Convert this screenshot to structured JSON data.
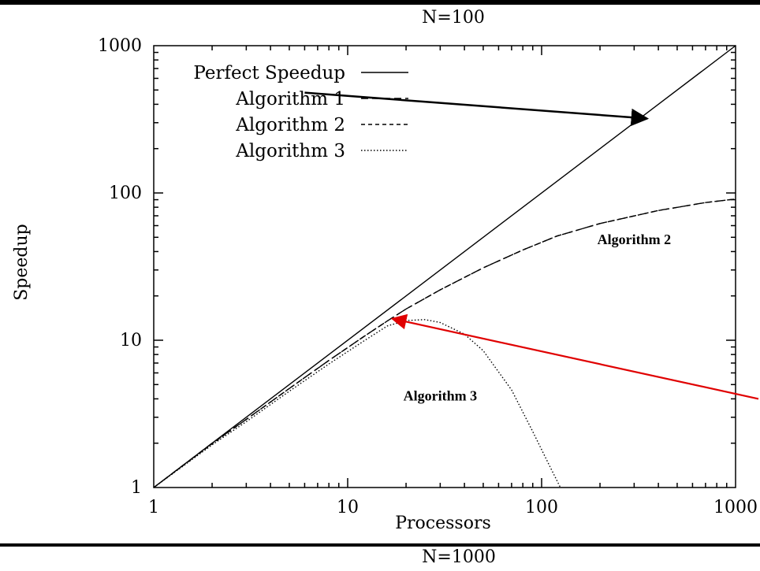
{
  "chart_data": {
    "type": "line",
    "title": "N=100",
    "subtitle": "N=1000",
    "xlabel": "Processors",
    "ylabel": "Speedup",
    "xscale": "log",
    "yscale": "log",
    "xlim": [
      1,
      1000
    ],
    "ylim": [
      1,
      1000
    ],
    "x_ticks": [
      1,
      10,
      100,
      1000
    ],
    "x_tick_labels": [
      "1",
      "10",
      "100",
      "1000"
    ],
    "y_ticks": [
      1,
      10,
      100,
      1000
    ],
    "y_tick_labels": [
      "1",
      "10",
      "100",
      "1000"
    ],
    "grid": false,
    "legend_position": "top-left",
    "series": [
      {
        "name": "Perfect Speedup",
        "style": "solid",
        "color": "#000000",
        "x": [
          1,
          1000
        ],
        "y": [
          1,
          1000
        ]
      },
      {
        "name": "Algorithm 1",
        "style": "long-dash",
        "color": "#000000",
        "x": [
          1,
          2,
          3,
          5,
          8,
          12,
          16,
          20,
          30,
          50,
          80,
          120,
          200,
          400,
          700,
          1000
        ],
        "y": [
          1,
          2,
          2.9,
          4.7,
          7.3,
          10.5,
          13.5,
          16.3,
          22,
          31,
          41,
          51,
          62,
          76,
          86,
          91
        ]
      },
      {
        "name": "Algorithm 2",
        "style": "short-dash",
        "color": "#000000",
        "x": [
          1,
          2,
          3,
          5,
          8,
          12,
          16,
          20,
          30,
          50,
          80,
          120,
          200,
          400,
          700,
          1000
        ],
        "y": [
          1,
          1.98,
          2.9,
          4.7,
          7.3,
          10.5,
          13.5,
          16.3,
          22,
          31,
          41,
          51,
          62,
          76,
          86,
          91
        ]
      },
      {
        "name": "Algorithm 3",
        "style": "dotted",
        "color": "#000000",
        "x": [
          1,
          2,
          3,
          5,
          8,
          12,
          16,
          20,
          25,
          30,
          40,
          50,
          70,
          90,
          110,
          125
        ],
        "y": [
          1,
          1.95,
          2.8,
          4.5,
          6.9,
          9.8,
          12.5,
          13.6,
          13.8,
          13.2,
          11,
          8.5,
          4.6,
          2.4,
          1.4,
          1
        ]
      }
    ],
    "annotations": [
      {
        "text": "Algorithm 2",
        "x": 300,
        "y": 45
      },
      {
        "text": "Algorithm 3",
        "x": 30,
        "y": 3.9
      }
    ],
    "arrows": [
      {
        "color": "#000000",
        "from_data": [
          6,
          480
        ],
        "to_data": [
          350,
          320
        ]
      },
      {
        "color": "#e00000",
        "from_data": [
          1000,
          4
        ],
        "to_data": [
          17,
          14
        ]
      }
    ]
  }
}
